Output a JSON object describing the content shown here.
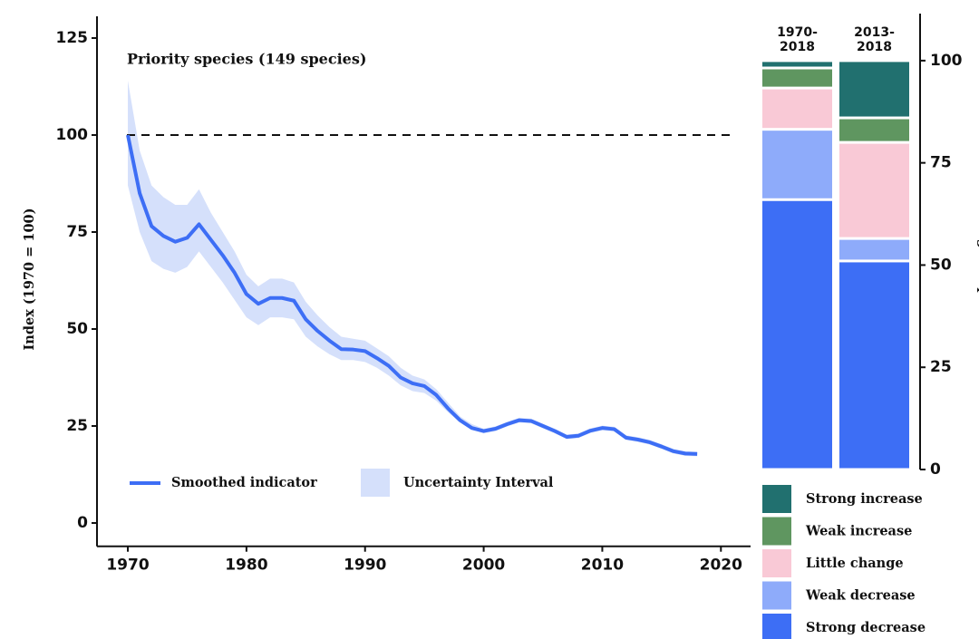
{
  "chart_data": [
    {
      "type": "line",
      "title": "Priority species (149 species)",
      "y_label": "Index (1970 = 100)",
      "x": [
        1970,
        1971,
        1972,
        1973,
        1974,
        1975,
        1976,
        1977,
        1978,
        1979,
        1980,
        1981,
        1982,
        1983,
        1984,
        1985,
        1986,
        1987,
        1988,
        1989,
        1990,
        1991,
        1992,
        1993,
        1994,
        1995,
        1996,
        1997,
        1998,
        1999,
        2000,
        2001,
        2002,
        2003,
        2004,
        2005,
        2006,
        2007,
        2008,
        2009,
        2010,
        2011,
        2012,
        2013,
        2014,
        2015,
        2016,
        2017,
        2018
      ],
      "series": [
        {
          "name": "Smoothed indicator",
          "color": "#3d6ef5",
          "values": [
            100,
            85,
            76.5,
            74,
            72.5,
            73.5,
            77,
            73,
            69,
            64.5,
            59,
            56.5,
            58,
            58,
            57.3,
            52.5,
            49.5,
            47,
            44.8,
            44.7,
            44.3,
            42.5,
            40.5,
            37.5,
            36,
            35.3,
            33,
            29.5,
            26.5,
            24.5,
            23.7,
            24.3,
            25.5,
            26.5,
            26.3,
            25,
            23.7,
            22.2,
            22.5,
            23.8,
            24.5,
            24.2,
            22,
            21.5,
            20.8,
            19.7,
            18.5,
            17.9,
            17.8
          ]
        }
      ],
      "band": {
        "name": "Uncertainty Interval",
        "color": "#d5e0fb",
        "lower": [
          87,
          75,
          67.5,
          65.5,
          64.5,
          66,
          70,
          66,
          62,
          57.5,
          53,
          51,
          53,
          53,
          52.5,
          48,
          45.5,
          43.5,
          42,
          42,
          41.5,
          40,
          38,
          35.5,
          34,
          33.5,
          31.5,
          28.5,
          26,
          24,
          23.1,
          23.7,
          24.9,
          25.9,
          25.7,
          24.4,
          23.1,
          21.6,
          21.9,
          23.2,
          23.9,
          23.6,
          21.4,
          20.9,
          20.2,
          19.1,
          17.9,
          17.3,
          17.2
        ],
        "upper": [
          114,
          96,
          87,
          84,
          82,
          82,
          86,
          80,
          75,
          70,
          64,
          61,
          63,
          63,
          62,
          57,
          53.5,
          50.5,
          48,
          47.5,
          47,
          45,
          43,
          40,
          38,
          37,
          34.5,
          31,
          27.5,
          25.5,
          24.3,
          24.9,
          26.1,
          27.1,
          26.9,
          25.6,
          24.3,
          22.8,
          23.1,
          24.4,
          25.1,
          24.8,
          22.6,
          22.1,
          21.4,
          20.3,
          19.1,
          18.5,
          18.4
        ]
      },
      "reference_line": 100,
      "xlim": [
        1967.4,
        2022.5
      ],
      "xticks": [
        1970,
        1980,
        1990,
        2000,
        2010,
        2020
      ],
      "ylim": [
        -6,
        130.6
      ],
      "yticks": [
        0,
        25,
        50,
        75,
        100,
        125
      ]
    },
    {
      "type": "stacked_bar",
      "y_label": "Percentage of species",
      "categories": [
        "1970-\n2018",
        "2013-\n2018"
      ],
      "series": [
        {
          "name": "Strong decrease",
          "color": "#3d6ef5",
          "values": [
            66,
            51
          ]
        },
        {
          "name": "Weak decrease",
          "color": "#8eabfa",
          "values": [
            17.2,
            5.5
          ]
        },
        {
          "name": "Little change",
          "color": "#f9c9d6",
          "values": [
            10.1,
            23.5
          ]
        },
        {
          "name": "Weak increase",
          "color": "#5f9660",
          "values": [
            4.9,
            6
          ]
        },
        {
          "name": "Strong increase",
          "color": "#21706f",
          "values": [
            1.8,
            14
          ]
        }
      ],
      "ylim": [
        0,
        111.5
      ],
      "yticks": [
        0,
        25,
        50,
        75,
        100
      ]
    }
  ]
}
